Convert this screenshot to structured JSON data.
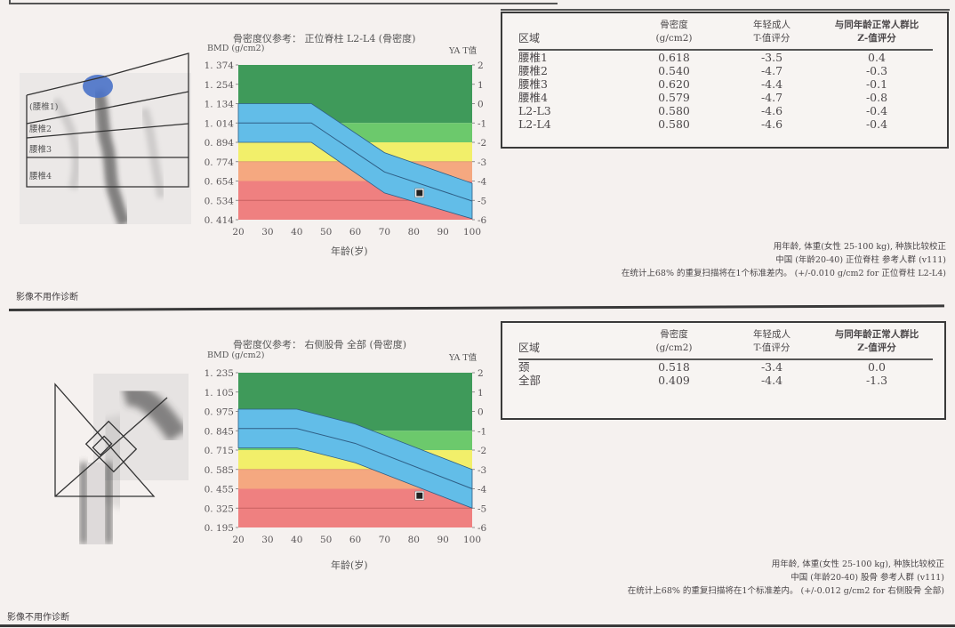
{
  "report": {
    "disclaimer": "影像不用作诊断"
  },
  "spine": {
    "scan_labels": [
      "(腰椎1)",
      "腰椎2",
      "腰椎3",
      "腰椎4"
    ],
    "chart_title": "骨密度仪参考： 正位脊柱 L2-L4 (骨密度)",
    "y_left_label": "BMD (g/cm2)",
    "y_right_label": "YA T值",
    "x_label": "年龄(岁)",
    "table": {
      "headers": [
        "区域",
        "骨密度\n(g/cm2)",
        "年轻成人\nT-值评分",
        "与同年龄正常人群比\nZ-值评分"
      ],
      "h_region": "区域",
      "h_bmd_1": "骨密度",
      "h_bmd_2": "(g/cm2)",
      "h_t_1": "年轻成人",
      "h_t_2": "T-值评分",
      "h_z_1": "与同年龄正常人群比",
      "h_z_2": "Z-值评分",
      "rows": [
        {
          "region": "腰椎1",
          "bmd": "0.618",
          "t": "-3.5",
          "z": "0.4"
        },
        {
          "region": "腰椎2",
          "bmd": "0.540",
          "t": "-4.7",
          "z": "-0.3"
        },
        {
          "region": "腰椎3",
          "bmd": "0.620",
          "t": "-4.4",
          "z": "-0.1"
        },
        {
          "region": "腰椎4",
          "bmd": "0.579",
          "t": "-4.7",
          "z": "-0.8"
        },
        {
          "region": "L2-L3",
          "bmd": "0.580",
          "t": "-4.6",
          "z": "-0.4"
        },
        {
          "region": "L2-L4",
          "bmd": "0.580",
          "t": "-4.6",
          "z": "-0.4"
        }
      ]
    },
    "notes": [
      "用年龄, 体重(女性 25-100 kg), 种族比较校正",
      "中国 (年龄20-40) 正位脊柱 参考人群 (v111)",
      "在统计上68% 的重复扫描将在1个标准差内。 (+/-0.010 g/cm2 for 正位脊柱 L2-L4)"
    ]
  },
  "hip": {
    "chart_title": "骨密度仪参考： 右侧股骨 全部 (骨密度)",
    "y_left_label": "BMD (g/cm2)",
    "y_right_label": "YA T值",
    "x_label": "年龄(岁)",
    "table": {
      "h_region": "区域",
      "h_bmd_1": "骨密度",
      "h_bmd_2": "(g/cm2)",
      "h_t_1": "年轻成人",
      "h_t_2": "T-值评分",
      "h_z_1": "与同年龄正常人群比",
      "h_z_2": "Z-值评分",
      "rows": [
        {
          "region": "颈",
          "bmd": "0.518",
          "t": "-3.4",
          "z": "0.0"
        },
        {
          "region": "全部",
          "bmd": "0.409",
          "t": "-4.4",
          "z": "-1.3"
        }
      ]
    },
    "notes": [
      "用年龄, 体重(女性 25-100 kg), 种族比较校正",
      "中国 (年龄20-40) 股骨 参考人群 (v111)",
      "在统计上68% 的重复扫描将在1个标准差内。 (+/-0.012 g/cm2 for 右侧股骨 全部)"
    ]
  },
  "colors": {
    "dark_green": "#3f9a5a",
    "light_green": "#6cc96c",
    "yellow": "#f2ef6a",
    "orange": "#f5a880",
    "red": "#ef8080",
    "blue_band": "#62bde8",
    "line": "#2f5f86"
  },
  "chart_data": [
    {
      "type": "area",
      "title": "骨密度仪参考： 正位脊柱 L2-L4 (骨密度)",
      "xlabel": "年龄(岁)",
      "ylabel": "BMD (g/cm2)",
      "y2label": "YA T值",
      "xlim": [
        20,
        100
      ],
      "x_ticks": [
        20,
        30,
        40,
        50,
        60,
        70,
        80,
        90,
        100
      ],
      "ylim": [
        0.414,
        1.374
      ],
      "y_ticks": [
        1.374,
        1.254,
        1.134,
        1.014,
        0.894,
        0.774,
        0.654,
        0.534,
        0.414
      ],
      "y2lim": [
        -6,
        2
      ],
      "y2_ticks": [
        2,
        1,
        0,
        -1,
        -2,
        -3,
        -4,
        -5,
        -6
      ],
      "t_bands": [
        {
          "name": "dark_green",
          "from_t": -1,
          "to_t": 2
        },
        {
          "name": "light_green",
          "from_t": -2,
          "to_t": -1
        },
        {
          "name": "yellow",
          "from_t": -3,
          "to_t": -2
        },
        {
          "name": "orange",
          "from_t": -4,
          "to_t": -3
        },
        {
          "name": "red",
          "from_t": -6,
          "to_t": -4
        }
      ],
      "reference_curve": {
        "x": [
          20,
          45,
          70,
          100
        ],
        "mean": [
          1.014,
          1.014,
          0.71,
          0.53
        ],
        "upper": [
          1.134,
          1.134,
          0.83,
          0.64
        ],
        "lower": [
          0.894,
          0.894,
          0.58,
          0.42
        ]
      },
      "patient_point": {
        "age": 82,
        "bmd": 0.58
      }
    },
    {
      "type": "area",
      "title": "骨密度仪参考： 右侧股骨 全部 (骨密度)",
      "xlabel": "年龄(岁)",
      "ylabel": "BMD (g/cm2)",
      "y2label": "YA T值",
      "xlim": [
        20,
        100
      ],
      "x_ticks": [
        20,
        30,
        40,
        50,
        60,
        70,
        80,
        90,
        100
      ],
      "ylim": [
        0.195,
        1.235
      ],
      "y_ticks": [
        1.235,
        1.105,
        0.975,
        0.845,
        0.715,
        0.585,
        0.455,
        0.325,
        0.195
      ],
      "y2lim": [
        -6,
        2
      ],
      "y2_ticks": [
        2,
        1,
        0,
        -1,
        -2,
        -3,
        -4,
        -5,
        -6
      ],
      "t_bands": [
        {
          "name": "dark_green",
          "from_t": -1,
          "to_t": 2
        },
        {
          "name": "light_green",
          "from_t": -2,
          "to_t": -1
        },
        {
          "name": "yellow",
          "from_t": -3,
          "to_t": -2
        },
        {
          "name": "orange",
          "from_t": -4,
          "to_t": -3
        },
        {
          "name": "red",
          "from_t": -6,
          "to_t": -4
        }
      ],
      "reference_curve": {
        "x": [
          20,
          40,
          60,
          100
        ],
        "mean": [
          0.86,
          0.86,
          0.76,
          0.455
        ],
        "upper": [
          0.99,
          0.99,
          0.89,
          0.585
        ],
        "lower": [
          0.73,
          0.73,
          0.63,
          0.325
        ]
      },
      "patient_point": {
        "age": 82,
        "bmd": 0.409
      }
    }
  ]
}
